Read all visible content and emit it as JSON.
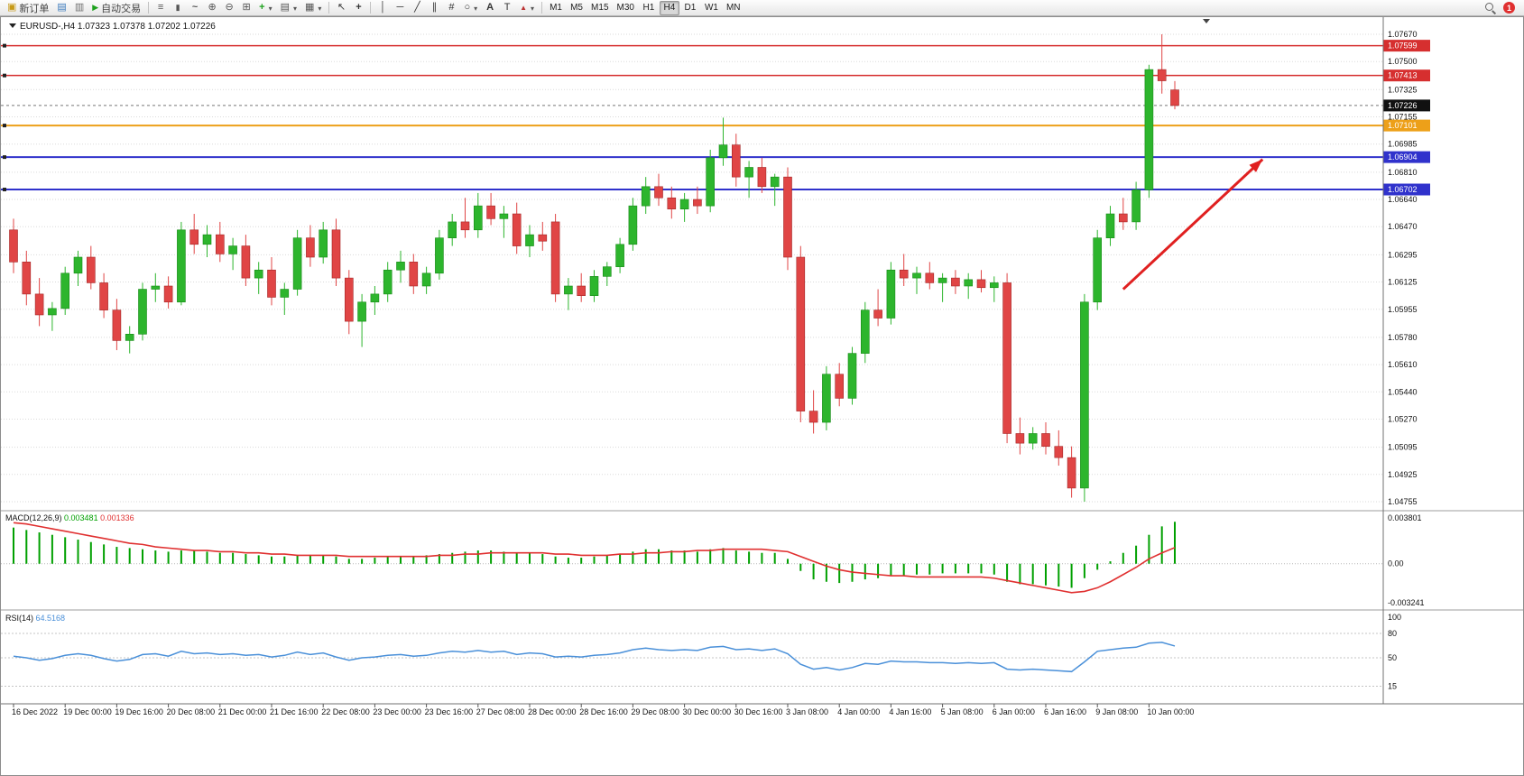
{
  "toolbar": {
    "new_order_label": "新订单",
    "auto_trading_label": "自动交易",
    "timeframes": [
      "M1",
      "M5",
      "M15",
      "M30",
      "H1",
      "H4",
      "D1",
      "W1",
      "MN"
    ],
    "active_timeframe": "H4",
    "notification_count": "1"
  },
  "chart_data": {
    "type": "candlestick",
    "symbol_title": "EURUSD-,H4",
    "ohlc_text": "1.07323 1.07378 1.07202 1.07226",
    "current_price": 1.07226,
    "colors": {
      "bull": "#2db52d",
      "bull_edge": "#168a16",
      "bear": "#e04545",
      "bear_edge": "#a32525",
      "grid": "#dadada"
    },
    "price_axis": {
      "min": 1.04755,
      "max": 1.0767,
      "ticks": [
        1.0767,
        1.075,
        1.07325,
        1.07155,
        1.06985,
        1.0681,
        1.0664,
        1.0647,
        1.06295,
        1.06125,
        1.05955,
        1.0578,
        1.0561,
        1.0544,
        1.0527,
        1.05095,
        1.04925,
        1.04755
      ]
    },
    "levels": [
      {
        "price": 1.07599,
        "color": "#d62f2f",
        "width": 1.5
      },
      {
        "price": 1.07413,
        "color": "#d62f2f",
        "width": 1.5
      },
      {
        "price": 1.07101,
        "color": "#eda019",
        "width": 2
      },
      {
        "price": 1.06904,
        "color": "#3032cc",
        "width": 2
      },
      {
        "price": 1.06702,
        "color": "#3032cc",
        "width": 2
      }
    ],
    "candles": [
      [
        1.0645,
        1.0652,
        1.0618,
        1.0625
      ],
      [
        1.0625,
        1.0632,
        1.0598,
        1.0605
      ],
      [
        1.0605,
        1.0615,
        1.0585,
        1.0592
      ],
      [
        1.0592,
        1.06,
        1.0582,
        1.0596
      ],
      [
        1.0596,
        1.0622,
        1.0592,
        1.0618
      ],
      [
        1.0618,
        1.0632,
        1.061,
        1.0628
      ],
      [
        1.0628,
        1.0635,
        1.0608,
        1.0612
      ],
      [
        1.0612,
        1.0618,
        1.059,
        1.0595
      ],
      [
        1.0595,
        1.0602,
        1.057,
        1.0576
      ],
      [
        1.0576,
        1.0585,
        1.0568,
        1.058
      ],
      [
        1.058,
        1.0612,
        1.0576,
        1.0608
      ],
      [
        1.0608,
        1.0618,
        1.06,
        1.061
      ],
      [
        1.061,
        1.0616,
        1.0596,
        1.06
      ],
      [
        1.06,
        1.065,
        1.0598,
        1.0645
      ],
      [
        1.0645,
        1.0655,
        1.063,
        1.0636
      ],
      [
        1.0636,
        1.0648,
        1.0628,
        1.0642
      ],
      [
        1.0642,
        1.065,
        1.0625,
        1.063
      ],
      [
        1.063,
        1.064,
        1.062,
        1.0635
      ],
      [
        1.0635,
        1.0642,
        1.061,
        1.0615
      ],
      [
        1.0615,
        1.0625,
        1.0605,
        1.062
      ],
      [
        1.062,
        1.0628,
        1.0598,
        1.0603
      ],
      [
        1.0603,
        1.0612,
        1.0592,
        1.0608
      ],
      [
        1.0608,
        1.0645,
        1.0604,
        1.064
      ],
      [
        1.064,
        1.0648,
        1.0622,
        1.0628
      ],
      [
        1.0628,
        1.065,
        1.0624,
        1.0645
      ],
      [
        1.0645,
        1.0652,
        1.061,
        1.0615
      ],
      [
        1.0615,
        1.062,
        1.058,
        1.0588
      ],
      [
        1.0588,
        1.0605,
        1.0572,
        1.06
      ],
      [
        1.06,
        1.061,
        1.0592,
        1.0605
      ],
      [
        1.0605,
        1.0625,
        1.06,
        1.062
      ],
      [
        1.062,
        1.0632,
        1.0612,
        1.0625
      ],
      [
        1.0625,
        1.063,
        1.0605,
        1.061
      ],
      [
        1.061,
        1.0622,
        1.0605,
        1.0618
      ],
      [
        1.0618,
        1.0645,
        1.0614,
        1.064
      ],
      [
        1.064,
        1.0655,
        1.0635,
        1.065
      ],
      [
        1.065,
        1.0665,
        1.064,
        1.0645
      ],
      [
        1.0645,
        1.0668,
        1.064,
        1.066
      ],
      [
        1.066,
        1.0668,
        1.0648,
        1.0652
      ],
      [
        1.0652,
        1.066,
        1.064,
        1.0655
      ],
      [
        1.0655,
        1.0662,
        1.063,
        1.0635
      ],
      [
        1.0635,
        1.0648,
        1.0628,
        1.0642
      ],
      [
        1.0642,
        1.065,
        1.0632,
        1.0638
      ],
      [
        1.065,
        1.0655,
        1.06,
        1.0605
      ],
      [
        1.0605,
        1.0615,
        1.0595,
        1.061
      ],
      [
        1.061,
        1.0618,
        1.06,
        1.0604
      ],
      [
        1.0604,
        1.062,
        1.06,
        1.0616
      ],
      [
        1.0616,
        1.0625,
        1.061,
        1.0622
      ],
      [
        1.0622,
        1.064,
        1.0618,
        1.0636
      ],
      [
        1.0636,
        1.0665,
        1.0632,
        1.066
      ],
      [
        1.066,
        1.0678,
        1.0655,
        1.0672
      ],
      [
        1.0672,
        1.068,
        1.066,
        1.0665
      ],
      [
        1.0665,
        1.0672,
        1.0652,
        1.0658
      ],
      [
        1.0658,
        1.0668,
        1.065,
        1.0664
      ],
      [
        1.0664,
        1.0672,
        1.0655,
        1.066
      ],
      [
        1.066,
        1.0695,
        1.0656,
        1.069
      ],
      [
        1.069,
        1.0715,
        1.0685,
        1.0698
      ],
      [
        1.0698,
        1.0705,
        1.0672,
        1.0678
      ],
      [
        1.0678,
        1.0688,
        1.0665,
        1.0684
      ],
      [
        1.0684,
        1.069,
        1.0668,
        1.0672
      ],
      [
        1.0672,
        1.068,
        1.066,
        1.0678
      ],
      [
        1.0678,
        1.0684,
        1.062,
        1.0628
      ],
      [
        1.0628,
        1.0635,
        1.0525,
        1.0532
      ],
      [
        1.0532,
        1.0545,
        1.0518,
        1.0525
      ],
      [
        1.0525,
        1.056,
        1.052,
        1.0555
      ],
      [
        1.0555,
        1.0562,
        1.0535,
        1.054
      ],
      [
        1.054,
        1.0572,
        1.0536,
        1.0568
      ],
      [
        1.0568,
        1.06,
        1.0562,
        1.0595
      ],
      [
        1.0595,
        1.0608,
        1.0585,
        1.059
      ],
      [
        1.059,
        1.0625,
        1.0586,
        1.062
      ],
      [
        1.062,
        1.063,
        1.061,
        1.0615
      ],
      [
        1.0615,
        1.0622,
        1.0605,
        1.0618
      ],
      [
        1.0618,
        1.0625,
        1.0608,
        1.0612
      ],
      [
        1.0612,
        1.0618,
        1.06,
        1.0615
      ],
      [
        1.0615,
        1.062,
        1.0605,
        1.061
      ],
      [
        1.061,
        1.0618,
        1.0602,
        1.0614
      ],
      [
        1.0614,
        1.062,
        1.0606,
        1.0609
      ],
      [
        1.0609,
        1.0616,
        1.06,
        1.0612
      ],
      [
        1.0612,
        1.0618,
        1.0512,
        1.0518
      ],
      [
        1.0518,
        1.0528,
        1.0505,
        1.0512
      ],
      [
        1.0512,
        1.0522,
        1.0508,
        1.0518
      ],
      [
        1.0518,
        1.0525,
        1.0505,
        1.051
      ],
      [
        1.051,
        1.052,
        1.0498,
        1.0503
      ],
      [
        1.0503,
        1.051,
        1.0478,
        1.0484
      ],
      [
        1.0484,
        1.0605,
        1.04755,
        1.06
      ],
      [
        1.06,
        1.0645,
        1.0595,
        1.064
      ],
      [
        1.064,
        1.066,
        1.0635,
        1.0655
      ],
      [
        1.0655,
        1.0665,
        1.0645,
        1.065
      ],
      [
        1.065,
        1.0675,
        1.0645,
        1.067
      ],
      [
        1.067,
        1.0748,
        1.0665,
        1.0745
      ],
      [
        1.0745,
        1.0767,
        1.073,
        1.0738
      ],
      [
        1.07323,
        1.07378,
        1.07202,
        1.07226
      ]
    ],
    "arrow": {
      "from_index": 86,
      "from_price": 1.0608,
      "to_index": 96.8,
      "to_price": 1.0689,
      "color": "#e02020"
    },
    "macd": {
      "label": "MACD(12,26,9)",
      "value_main": "0.003481",
      "value_signal": "0.001336",
      "axis": [
        "0.003801",
        "0.00",
        "-0.003241"
      ],
      "ymax": 0.003801,
      "ymin": -0.003241,
      "hist_color": "#00a000",
      "signal_color": "#e03030",
      "histogram": [
        0.003,
        0.0028,
        0.0026,
        0.0024,
        0.0022,
        0.002,
        0.0018,
        0.0016,
        0.0014,
        0.0013,
        0.0012,
        0.0011,
        0.001,
        0.0011,
        0.0011,
        0.001,
        0.0009,
        0.0009,
        0.0008,
        0.0007,
        0.0006,
        0.0006,
        0.0007,
        0.0007,
        0.0007,
        0.0006,
        0.0004,
        0.0004,
        0.0005,
        0.0006,
        0.0006,
        0.0006,
        0.0007,
        0.0008,
        0.0009,
        0.001,
        0.0011,
        0.0011,
        0.001,
        0.0009,
        0.0009,
        0.0008,
        0.0006,
        0.0005,
        0.0005,
        0.0006,
        0.0007,
        0.0008,
        0.001,
        0.0012,
        0.0012,
        0.0011,
        0.0011,
        0.001,
        0.0012,
        0.0013,
        0.0011,
        0.001,
        0.0009,
        0.0009,
        0.0004,
        -0.0006,
        -0.0013,
        -0.0015,
        -0.0016,
        -0.0015,
        -0.0013,
        -0.0012,
        -0.001,
        -0.001,
        -0.0009,
        -0.0009,
        -0.0008,
        -0.0008,
        -0.0008,
        -0.0008,
        -0.0009,
        -0.0015,
        -0.0017,
        -0.0017,
        -0.0018,
        -0.0019,
        -0.002,
        -0.0012,
        -0.0005,
        0.0002,
        0.0009,
        0.0015,
        0.0024,
        0.0031,
        0.003481
      ],
      "signal": [
        0.0034,
        0.0033,
        0.0031,
        0.0029,
        0.0027,
        0.0025,
        0.0023,
        0.0021,
        0.0019,
        0.0017,
        0.0016,
        0.0014,
        0.0013,
        0.0012,
        0.0011,
        0.0011,
        0.001,
        0.001,
        0.0009,
        0.0009,
        0.0008,
        0.0008,
        0.0007,
        0.0007,
        0.0007,
        0.0007,
        0.0006,
        0.0006,
        0.0006,
        0.0006,
        0.0006,
        0.0006,
        0.0006,
        0.0007,
        0.0007,
        0.0008,
        0.0008,
        0.0009,
        0.0009,
        0.0009,
        0.0009,
        0.0009,
        0.0008,
        0.0008,
        0.0007,
        0.0007,
        0.0007,
        0.0008,
        0.0008,
        0.0009,
        0.0009,
        0.001,
        0.001,
        0.0011,
        0.0011,
        0.0012,
        0.0012,
        0.0012,
        0.0012,
        0.0011,
        0.001,
        0.0006,
        0.0002,
        -0.0002,
        -0.0005,
        -0.0007,
        -0.0008,
        -0.0009,
        -0.001,
        -0.001,
        -0.0011,
        -0.0011,
        -0.0011,
        -0.0011,
        -0.0011,
        -0.0011,
        -0.0012,
        -0.0014,
        -0.0016,
        -0.0018,
        -0.002,
        -0.0022,
        -0.0024,
        -0.0023,
        -0.002,
        -0.0015,
        -0.0009,
        -0.0003,
        0.0004,
        0.0009,
        0.001336
      ]
    },
    "rsi": {
      "label": "RSI(14)",
      "value": "64.5168",
      "color": "#4a90d9",
      "axis": [
        "100",
        "80",
        "50",
        "15"
      ],
      "levels": [
        80,
        50,
        15
      ],
      "values": [
        52,
        50,
        47,
        49,
        53,
        55,
        53,
        49,
        46,
        48,
        54,
        55,
        52,
        58,
        55,
        56,
        54,
        55,
        53,
        54,
        51,
        53,
        57,
        54,
        56,
        51,
        47,
        50,
        51,
        53,
        54,
        52,
        53,
        56,
        58,
        57,
        59,
        57,
        58,
        54,
        56,
        55,
        51,
        52,
        51,
        53,
        54,
        56,
        60,
        62,
        60,
        59,
        60,
        59,
        63,
        64,
        60,
        61,
        59,
        61,
        55,
        42,
        36,
        38,
        35,
        38,
        43,
        42,
        46,
        45,
        45,
        44,
        44,
        43,
        44,
        43,
        44,
        36,
        35,
        36,
        35,
        34,
        33,
        45,
        58,
        60,
        62,
        63,
        68,
        69,
        64.5168
      ]
    },
    "time_labels": [
      "16 Dec 2022",
      "19 Dec 00:00",
      "19 Dec 16:00",
      "20 Dec 08:00",
      "21 Dec 00:00",
      "21 Dec 16:00",
      "22 Dec 08:00",
      "23 Dec 00:00",
      "23 Dec 16:00",
      "27 Dec 08:00",
      "28 Dec 00:00",
      "28 Dec 16:00",
      "29 Dec 08:00",
      "30 Dec 00:00",
      "30 Dec 16:00",
      "3 Jan 08:00",
      "4 Jan 00:00",
      "4 Jan 16:00",
      "5 Jan 08:00",
      "6 Jan 00:00",
      "6 Jan 16:00",
      "9 Jan 08:00",
      "10 Jan 00:00"
    ],
    "label_step": 4
  }
}
